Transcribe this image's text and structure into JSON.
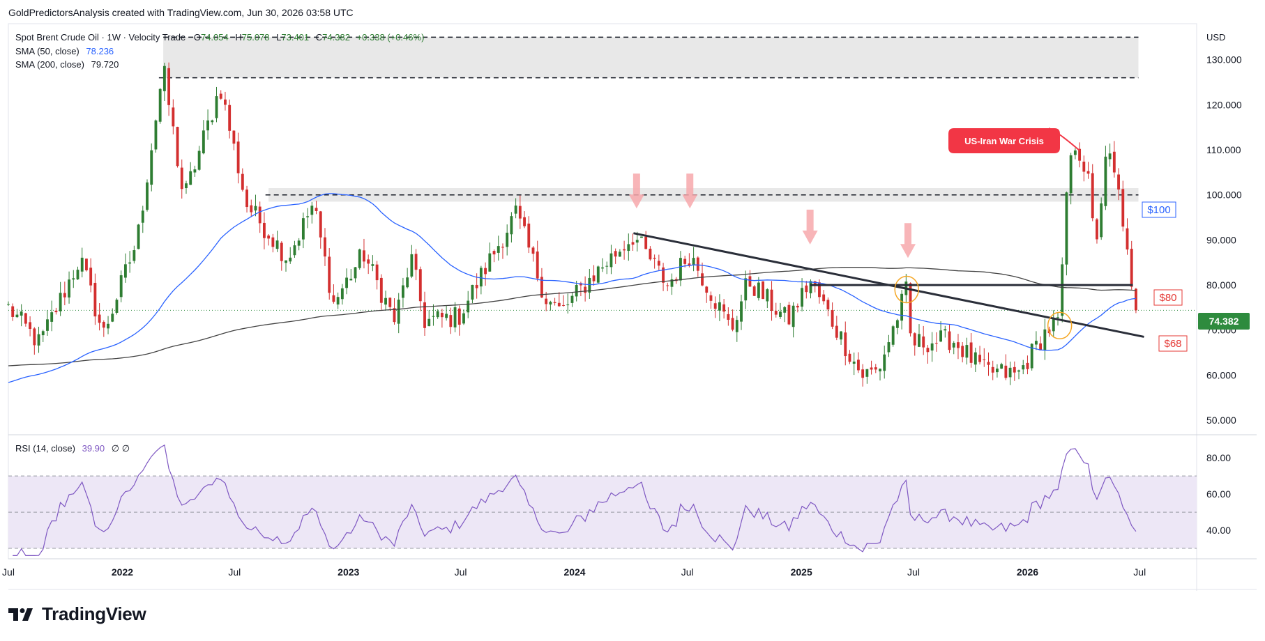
{
  "header": {
    "credit": "GoldPredictorsAnalysis created with TradingView.com, Jun 30, 2026 03:58 UTC"
  },
  "legend": {
    "symbol": "Spot Brent Crude Oil · 1W · Velocity Trade",
    "ohlc": {
      "o_label": "O",
      "o": "74.054",
      "h_label": "H",
      "h": "75.078",
      "l_label": "L",
      "l": "73.401",
      "c_label": "C",
      "c": "74.382",
      "chg": "+0.338 (+0.46%)"
    },
    "sma50_label": "SMA (50, close)",
    "sma50_value": "78.236",
    "sma200_label": "SMA (200, close)",
    "sma200_value": "79.720",
    "rsi_label": "RSI (14, close)",
    "rsi_value": "39.90",
    "rsi_extra": "∅  ∅"
  },
  "currency": "USD",
  "price_badge": "74.382",
  "annotations": {
    "callout": "US-Iran War Crisis",
    "level_100": "$100",
    "level_80": "$80",
    "level_68": "$68"
  },
  "brand": "TradingView",
  "colors": {
    "up": "#26a69a",
    "down": "#ef5350",
    "up_candle": "#2e7d32",
    "down_candle": "#d32f2f",
    "sma50": "#2962ff",
    "sma200": "#424242",
    "rsi_line": "#7e57c2",
    "rsi_band": "#ede7f6",
    "callout": "#f23645",
    "arrow": "#f7a8ab",
    "circle": "#f5a623",
    "price_badge": "#2e8b3e"
  },
  "chart_data": [
    {
      "type": "candlestick",
      "title": "Spot Brent Crude Oil · 1W · Velocity Trade",
      "y_ticks": [
        "130.000",
        "120.000",
        "110.000",
        "100.000",
        "90.000",
        "80.000",
        "70.000",
        "60.000",
        "50.000"
      ],
      "ylim": [
        48,
        138
      ],
      "x_ticks": [
        "Jul",
        "2022",
        "Jul",
        "2023",
        "Jul",
        "2024",
        "Jul",
        "2025",
        "Jul",
        "2026",
        "Jul"
      ],
      "x_tick_dates": [
        "2021-07",
        "2022-01",
        "2022-07",
        "2023-01",
        "2023-07",
        "2024-01",
        "2024-07",
        "2025-01",
        "2025-07",
        "2026-01",
        "2026-07"
      ],
      "x_range": [
        "2021-07",
        "2026-10"
      ],
      "anchors": [
        [
          "2021-07-01",
          75
        ],
        [
          "2021-08-20",
          67
        ],
        [
          "2021-10-25",
          86
        ],
        [
          "2021-12-01",
          69
        ],
        [
          "2022-01-25",
          90
        ],
        [
          "2022-03-08",
          128
        ],
        [
          "2022-04-10",
          99
        ],
        [
          "2022-06-08",
          124
        ],
        [
          "2022-07-20",
          98
        ],
        [
          "2022-09-25",
          86
        ],
        [
          "2022-11-05",
          98
        ],
        [
          "2022-12-08",
          76
        ],
        [
          "2023-01-25",
          87
        ],
        [
          "2023-03-17",
          72
        ],
        [
          "2023-04-12",
          86
        ],
        [
          "2023-05-04",
          72
        ],
        [
          "2023-06-28",
          73
        ],
        [
          "2023-09-28",
          96
        ],
        [
          "2023-11-16",
          77
        ],
        [
          "2023-12-10",
          74
        ],
        [
          "2024-01-30",
          82
        ],
        [
          "2024-04-05",
          91
        ],
        [
          "2024-05-30",
          80
        ],
        [
          "2024-07-05",
          87
        ],
        [
          "2024-09-10",
          70
        ],
        [
          "2024-10-07",
          81
        ],
        [
          "2024-12-10",
          72
        ],
        [
          "2025-01-15",
          81
        ],
        [
          "2025-04-08",
          60
        ],
        [
          "2025-05-05",
          61
        ],
        [
          "2025-06-20",
          79
        ],
        [
          "2025-06-27",
          67
        ],
        [
          "2025-09-01",
          68
        ],
        [
          "2025-10-22",
          61
        ],
        [
          "2025-12-16",
          60
        ],
        [
          "2026-02-01",
          70
        ],
        [
          "2026-02-22",
          72
        ],
        [
          "2026-03-06",
          103
        ],
        [
          "2026-03-20",
          112
        ],
        [
          "2026-04-08",
          104
        ],
        [
          "2026-04-20",
          88
        ],
        [
          "2026-05-10",
          110
        ],
        [
          "2026-06-01",
          98
        ],
        [
          "2026-06-18",
          78
        ],
        [
          "2026-06-29",
          74.382
        ]
      ],
      "levels": {
        "zone_top": [
          126,
          135
        ],
        "zone_mid": [
          98.5,
          101.5
        ],
        "resistance_80": 80,
        "current": 74.382
      }
    },
    {
      "type": "line",
      "title": "RSI (14, close)",
      "y_ticks": [
        "80.00",
        "60.00",
        "40.00"
      ],
      "ylim": [
        25,
        92
      ],
      "bands": [
        30,
        50,
        70
      ],
      "last_value": 39.9
    }
  ]
}
